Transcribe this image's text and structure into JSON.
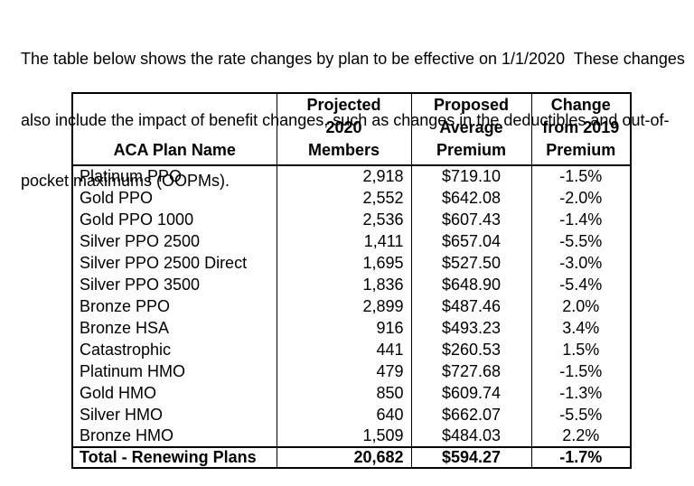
{
  "intro": {
    "lines": [
      "The table below shows the rate changes by plan to be effective on 1/1/2020  These changes",
      "also include the impact of benefit changes, such as changes in the deductibles and out-of-",
      "pocket maximums (OOPMs)."
    ]
  },
  "table": {
    "headers": {
      "plan": "ACA Plan Name",
      "members": [
        "Projected",
        "2020",
        "Members"
      ],
      "premium": [
        "Proposed",
        "Average",
        "Premium"
      ],
      "change": [
        "Change",
        "from 2019",
        "Premium"
      ]
    },
    "rows": [
      {
        "plan": "Platinum PPO",
        "members": "2,918",
        "premium": "$719.10",
        "change": "-1.5%"
      },
      {
        "plan": "Gold PPO",
        "members": "2,552",
        "premium": "$642.08",
        "change": "-2.0%"
      },
      {
        "plan": "Gold PPO 1000",
        "members": "2,536",
        "premium": "$607.43",
        "change": "-1.4%"
      },
      {
        "plan": "Silver PPO 2500",
        "members": "1,411",
        "premium": "$657.04",
        "change": "-5.5%"
      },
      {
        "plan": "Silver PPO 2500 Direct",
        "members": "1,695",
        "premium": "$527.50",
        "change": "-3.0%"
      },
      {
        "plan": "Silver PPO 3500",
        "members": "1,836",
        "premium": "$648.90",
        "change": "-5.4%"
      },
      {
        "plan": "Bronze PPO",
        "members": "2,899",
        "premium": "$487.46",
        "change": "2.0%"
      },
      {
        "plan": "Bronze HSA",
        "members": "916",
        "premium": "$493.23",
        "change": "3.4%"
      },
      {
        "plan": "Catastrophic",
        "members": "441",
        "premium": "$260.53",
        "change": "1.5%"
      },
      {
        "plan": "Platinum HMO",
        "members": "479",
        "premium": "$727.68",
        "change": "-1.5%"
      },
      {
        "plan": "Gold HMO",
        "members": "850",
        "premium": "$609.74",
        "change": "-1.3%"
      },
      {
        "plan": "Silver HMO",
        "members": "640",
        "premium": "$662.07",
        "change": "-5.5%"
      },
      {
        "plan": "Bronze HMO",
        "members": "1,509",
        "premium": "$484.03",
        "change": "2.2%"
      }
    ],
    "total": {
      "plan": "Total - Renewing Plans",
      "members": "20,682",
      "premium": "$594.27",
      "change": "-1.7%"
    }
  },
  "colors": {
    "text": "#000000",
    "background": "#ffffff",
    "border": "#000000"
  }
}
